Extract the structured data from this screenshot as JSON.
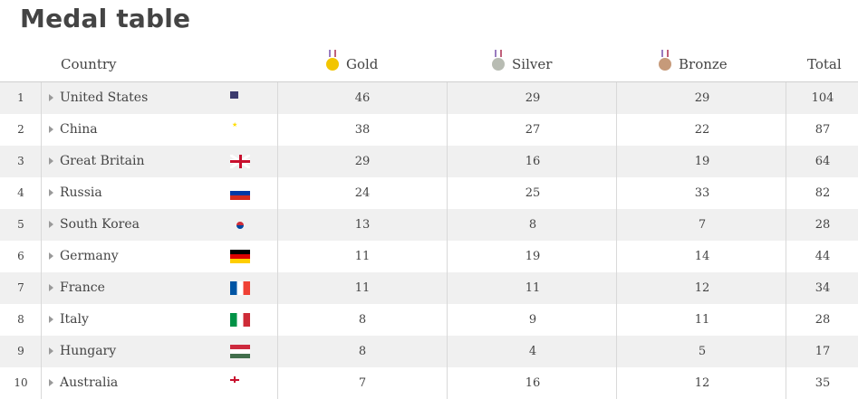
{
  "title": "Medal table",
  "columns": {
    "country": "Country",
    "gold": "Gold",
    "silver": "Silver",
    "bronze": "Bronze",
    "total": "Total"
  },
  "colors": {
    "gold": "#f2c500",
    "silver": "#b8bcb3",
    "bronze": "#c69a7a",
    "row_alt": "#f0f0f0"
  },
  "rows": [
    {
      "rank": "1",
      "country": "United States",
      "flag": "us-flag-icon",
      "gold": "46",
      "silver": "29",
      "bronze": "29",
      "total": "104"
    },
    {
      "rank": "2",
      "country": "China",
      "flag": "cn-flag-icon",
      "gold": "38",
      "silver": "27",
      "bronze": "22",
      "total": "87"
    },
    {
      "rank": "3",
      "country": "Great Britain",
      "flag": "gb-flag-icon",
      "gold": "29",
      "silver": "16",
      "bronze": "19",
      "total": "64"
    },
    {
      "rank": "4",
      "country": "Russia",
      "flag": "ru-flag-icon",
      "gold": "24",
      "silver": "25",
      "bronze": "33",
      "total": "82"
    },
    {
      "rank": "5",
      "country": "South Korea",
      "flag": "kr-flag-icon",
      "gold": "13",
      "silver": "8",
      "bronze": "7",
      "total": "28"
    },
    {
      "rank": "6",
      "country": "Germany",
      "flag": "de-flag-icon",
      "gold": "11",
      "silver": "19",
      "bronze": "14",
      "total": "44"
    },
    {
      "rank": "7",
      "country": "France",
      "flag": "fr-flag-icon",
      "gold": "11",
      "silver": "11",
      "bronze": "12",
      "total": "34"
    },
    {
      "rank": "8",
      "country": "Italy",
      "flag": "it-flag-icon",
      "gold": "8",
      "silver": "9",
      "bronze": "11",
      "total": "28"
    },
    {
      "rank": "9",
      "country": "Hungary",
      "flag": "hu-flag-icon",
      "gold": "8",
      "silver": "4",
      "bronze": "5",
      "total": "17"
    },
    {
      "rank": "10",
      "country": "Australia",
      "flag": "au-flag-icon",
      "gold": "7",
      "silver": "16",
      "bronze": "12",
      "total": "35"
    }
  ]
}
